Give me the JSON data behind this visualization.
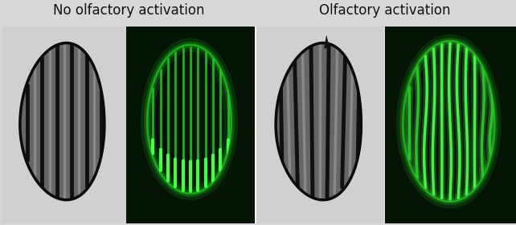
{
  "title_left": "No olfactory activation",
  "title_right": "Olfactory activation",
  "bg_color": "#d8d8d8",
  "light_panel_color": "#d4d4d4",
  "dark_green_bg": "#051405",
  "figure_width": 6.42,
  "figure_height": 2.8,
  "title_fontsize": 12,
  "title_color": "#111111",
  "nematode_dark": "#1a1a1a",
  "nematode_mid": "#555555",
  "nematode_light": "#aaaaaa",
  "nematode_body_fill": "#888888",
  "green_bright": "#44ff44",
  "green_mid": "#22cc22",
  "green_dim": "#116611",
  "green_glow": "#88ff88"
}
